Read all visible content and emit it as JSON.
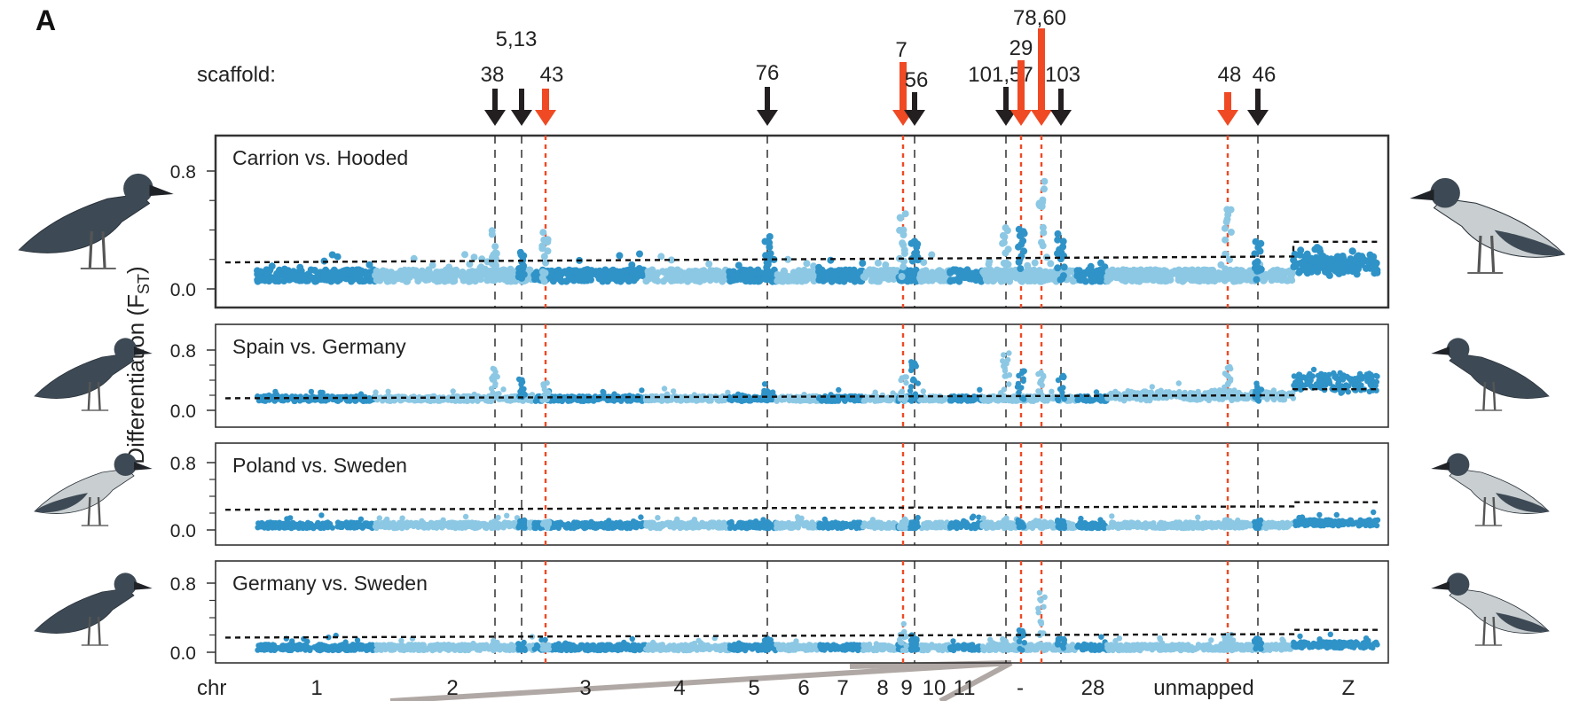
{
  "figure": {
    "panel_letter": "A",
    "ylabel": "Differentiation (F",
    "ylabel_sub": "ST",
    "ylabel_close": ")",
    "scaffold_label": "scaffold:",
    "chr_label": "chr"
  },
  "colors": {
    "dark_blue": "#2f93c8",
    "light_blue": "#8cc8e4",
    "outlier_red": "#ef4a24",
    "black_arrow": "#231f20",
    "grey_link": "#b0a8a4"
  },
  "chart_data": {
    "type": "scatter",
    "y_ticks": [
      "0.0",
      "0.8"
    ],
    "ylim": [
      0,
      1.0
    ],
    "chromosomes": [
      "1",
      "2",
      "3",
      "4",
      "5",
      "6",
      "7",
      "8",
      "9",
      "10",
      "11",
      "-",
      "28",
      "unmapped",
      "Z"
    ],
    "scaffolds": [
      {
        "label": "38",
        "type": "black"
      },
      {
        "label": "5,13",
        "type": "black"
      },
      {
        "label": "43",
        "type": "red"
      },
      {
        "label": "76",
        "type": "black"
      },
      {
        "label": "7",
        "type": "red"
      },
      {
        "label": "56",
        "type": "black"
      },
      {
        "label": "101,57",
        "type": "black"
      },
      {
        "label": "29",
        "type": "red"
      },
      {
        "label": "78,60",
        "type": "red"
      },
      {
        "label": "103",
        "type": "black"
      },
      {
        "label": "48",
        "type": "red"
      },
      {
        "label": "46",
        "type": "black"
      }
    ],
    "panels": [
      {
        "title": "Carrion vs. Hooded",
        "threshold_autosomes": 0.18,
        "threshold_z": 0.32,
        "baseline": 0.05
      },
      {
        "title": "Spain vs. Germany",
        "threshold_autosomes": 0.16,
        "threshold_z": 0.28,
        "baseline": 0.12
      },
      {
        "title": "Poland vs. Sweden",
        "threshold_autosomes": 0.24,
        "threshold_z": 0.33,
        "baseline": 0.02
      },
      {
        "title": "Germany vs. Sweden",
        "threshold_autosomes": 0.17,
        "threshold_z": 0.26,
        "baseline": 0.02
      }
    ]
  }
}
